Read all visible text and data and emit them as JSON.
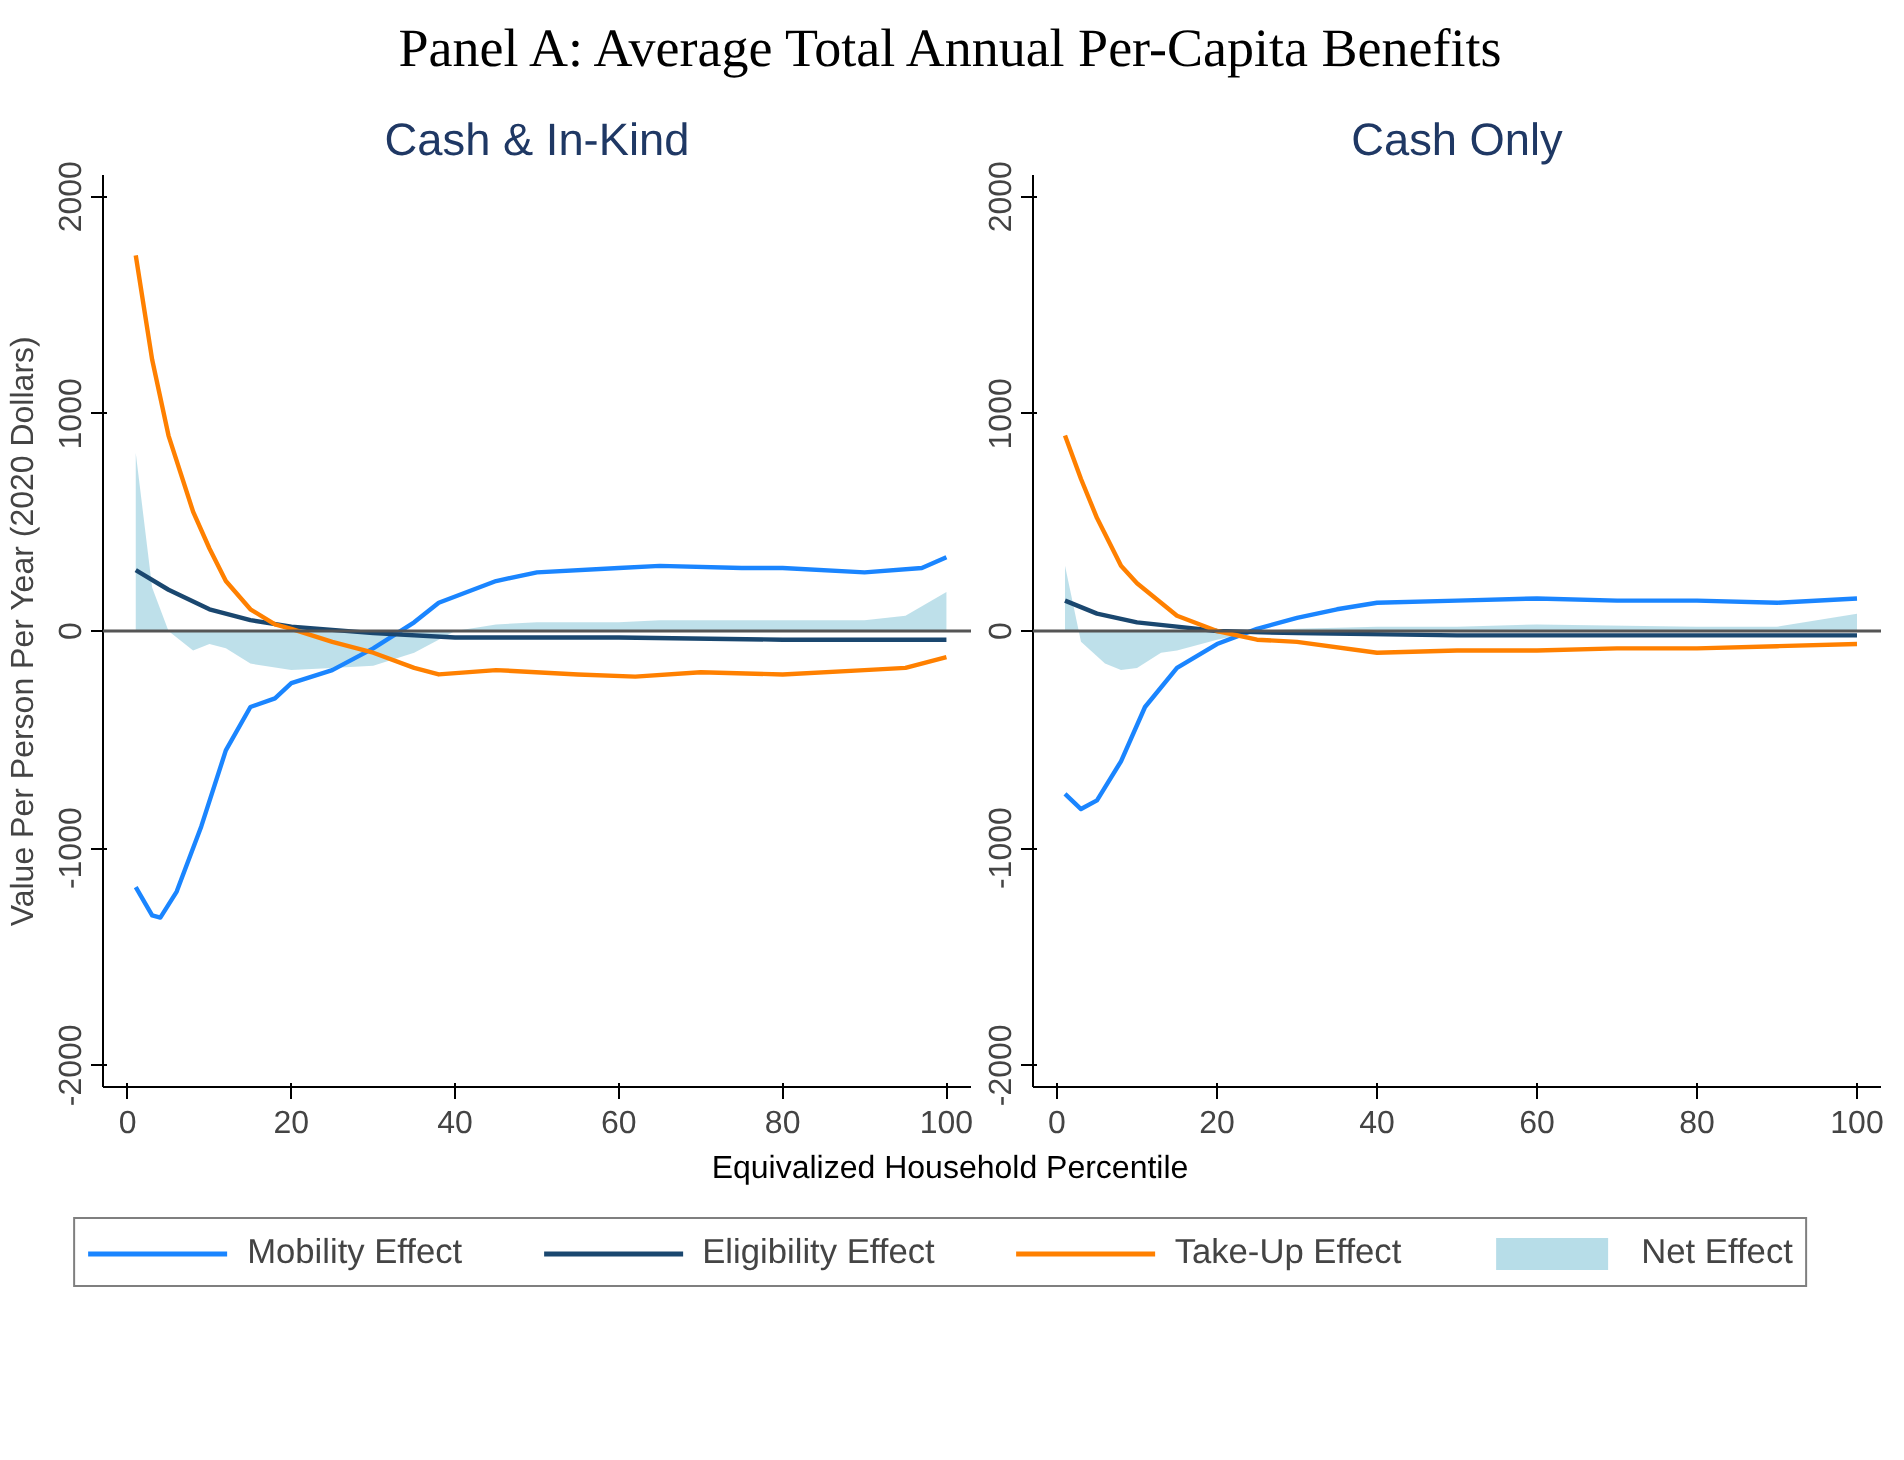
{
  "chart_data": [
    {
      "type": "line",
      "title": "Cash & In-Kind",
      "xlabel": "Equivalized Household Percentile",
      "ylabel": "Value Per Person Per Year (2020 Dollars)",
      "annotations": [
        "Panel A: Average Total Annual Per-Capita Benefits"
      ],
      "xlim": [
        -3,
        103
      ],
      "ylim": [
        -2100,
        2100
      ],
      "xticks": [
        0,
        20,
        40,
        60,
        80,
        100
      ],
      "yticks": [
        -2000,
        -1000,
        0,
        1000,
        2000
      ],
      "grid": false,
      "legend": "bottom",
      "ref_lines": [
        {
          "axis": "y",
          "value": 0,
          "color": "#555555"
        }
      ],
      "series": [
        {
          "name": "Net Effect",
          "type": "area",
          "color": "#b7dde8",
          "x": [
            1,
            3,
            5,
            8,
            10,
            12,
            15,
            20,
            25,
            30,
            35,
            40,
            45,
            50,
            60,
            65,
            75,
            90,
            95,
            100
          ],
          "values": [
            820,
            200,
            0,
            -90,
            -60,
            -80,
            -150,
            -180,
            -170,
            -160,
            -100,
            0,
            30,
            40,
            40,
            50,
            50,
            50,
            70,
            180
          ]
        },
        {
          "name": "Mobility Effect",
          "color": "#1a85ff",
          "x": [
            1,
            3,
            4,
            6,
            9,
            12,
            15,
            18,
            20,
            25,
            30,
            35,
            38,
            45,
            50,
            60,
            65,
            75,
            80,
            90,
            97,
            100
          ],
          "values": [
            -1180,
            -1310,
            -1320,
            -1200,
            -900,
            -550,
            -350,
            -310,
            -240,
            -180,
            -80,
            40,
            130,
            230,
            270,
            290,
            300,
            290,
            290,
            270,
            290,
            340
          ]
        },
        {
          "name": "Eligibility Effect",
          "color": "#1a476f",
          "x": [
            1,
            5,
            10,
            15,
            20,
            30,
            40,
            50,
            60,
            80,
            100
          ],
          "values": [
            280,
            190,
            100,
            50,
            20,
            -10,
            -30,
            -30,
            -30,
            -40,
            -40
          ]
        },
        {
          "name": "Take-Up Effect",
          "color": "#ff8000",
          "x": [
            1,
            3,
            5,
            8,
            10,
            12,
            15,
            18,
            20,
            25,
            30,
            35,
            38,
            45,
            55,
            62,
            70,
            80,
            90,
            95,
            100
          ],
          "values": [
            1730,
            1250,
            900,
            550,
            380,
            230,
            100,
            30,
            10,
            -50,
            -100,
            -170,
            -200,
            -180,
            -200,
            -210,
            -190,
            -200,
            -180,
            -170,
            -120
          ]
        }
      ]
    },
    {
      "type": "line",
      "title": "Cash Only",
      "xlim": [
        -3,
        103
      ],
      "ylim": [
        -2100,
        2100
      ],
      "xticks": [
        0,
        20,
        40,
        60,
        80,
        100
      ],
      "yticks": [
        -2000,
        -1000,
        0,
        1000,
        2000
      ],
      "grid": false,
      "ref_lines": [
        {
          "axis": "y",
          "value": 0,
          "color": "#555555"
        }
      ],
      "series": [
        {
          "type": "area",
          "color": "#b7dde8",
          "x": [
            1,
            3,
            6,
            8,
            10,
            13,
            15,
            20,
            25,
            30,
            40,
            50,
            60,
            80,
            90,
            100
          ],
          "values": [
            300,
            -50,
            -150,
            -180,
            -170,
            -100,
            -90,
            -40,
            0,
            10,
            20,
            20,
            30,
            20,
            20,
            80
          ]
        },
        {
          "color": "#1a85ff",
          "x": [
            1,
            3,
            5,
            8,
            11,
            15,
            20,
            25,
            30,
            35,
            40,
            50,
            60,
            70,
            80,
            90,
            100
          ],
          "values": [
            -750,
            -820,
            -780,
            -600,
            -350,
            -170,
            -60,
            10,
            60,
            100,
            130,
            140,
            150,
            140,
            140,
            130,
            150
          ]
        },
        {
          "color": "#1a476f",
          "x": [
            1,
            5,
            10,
            15,
            20,
            30,
            50,
            100
          ],
          "values": [
            140,
            80,
            40,
            20,
            0,
            -10,
            -20,
            -20
          ]
        },
        {
          "color": "#ff8000",
          "x": [
            1,
            3,
            5,
            8,
            10,
            15,
            20,
            25,
            30,
            40,
            50,
            60,
            70,
            80,
            90,
            100
          ],
          "values": [
            900,
            700,
            520,
            300,
            220,
            70,
            0,
            -40,
            -50,
            -100,
            -90,
            -90,
            -80,
            -80,
            -70,
            -60
          ]
        }
      ]
    }
  ]
}
